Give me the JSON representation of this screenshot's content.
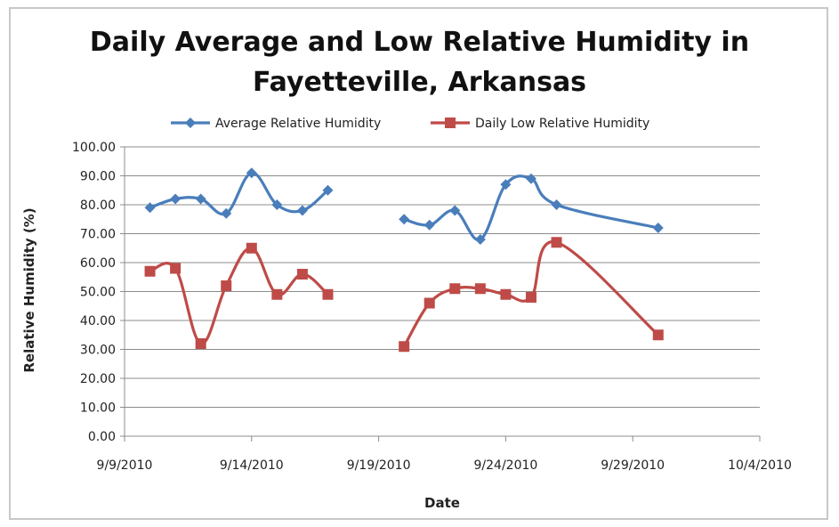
{
  "chart_data": {
    "type": "line",
    "title_line1": "Daily Average and Low Relative Humidity in",
    "title_line2": "Fayetteville, Arkansas",
    "xlabel": "Date",
    "ylabel": "Relative Humidity (%)",
    "x_range": [
      "2010-09-09",
      "2010-10-04"
    ],
    "ylim": [
      0,
      100
    ],
    "x_ticks": [
      "9/9/2010",
      "9/14/2010",
      "9/19/2010",
      "9/24/2010",
      "9/29/2010",
      "10/4/2010"
    ],
    "y_ticks": [
      "0.00",
      "10.00",
      "20.00",
      "30.00",
      "40.00",
      "50.00",
      "60.00",
      "70.00",
      "80.00",
      "90.00",
      "100.00"
    ],
    "grid": "horizontal",
    "legend_position": "top",
    "series": [
      {
        "name": "Average Relative Humidity",
        "color": "#4a7ebb",
        "marker": "diamond",
        "segments": [
          [
            [
              "2010-09-10",
              79
            ],
            [
              "2010-09-11",
              82
            ],
            [
              "2010-09-12",
              82
            ],
            [
              "2010-09-13",
              77
            ],
            [
              "2010-09-14",
              91
            ],
            [
              "2010-09-15",
              80
            ],
            [
              "2010-09-16",
              78
            ],
            [
              "2010-09-17",
              85
            ]
          ],
          [
            [
              "2010-09-20",
              75
            ],
            [
              "2010-09-21",
              73
            ],
            [
              "2010-09-22",
              78
            ],
            [
              "2010-09-23",
              68
            ],
            [
              "2010-09-24",
              87
            ],
            [
              "2010-09-25",
              89
            ],
            [
              "2010-09-26",
              80
            ],
            [
              "2010-09-30",
              72
            ]
          ]
        ]
      },
      {
        "name": "Daily Low Relative Humidity",
        "color": "#be4b48",
        "marker": "square",
        "segments": [
          [
            [
              "2010-09-10",
              57
            ],
            [
              "2010-09-11",
              58
            ],
            [
              "2010-09-12",
              32
            ],
            [
              "2010-09-13",
              52
            ],
            [
              "2010-09-14",
              65
            ],
            [
              "2010-09-15",
              49
            ],
            [
              "2010-09-16",
              56
            ],
            [
              "2010-09-17",
              49
            ]
          ],
          [
            [
              "2010-09-20",
              31
            ],
            [
              "2010-09-21",
              46
            ],
            [
              "2010-09-22",
              51
            ],
            [
              "2010-09-23",
              51
            ],
            [
              "2010-09-24",
              49
            ],
            [
              "2010-09-25",
              48
            ],
            [
              "2010-09-26",
              67
            ],
            [
              "2010-09-30",
              35
            ]
          ]
        ]
      }
    ]
  }
}
